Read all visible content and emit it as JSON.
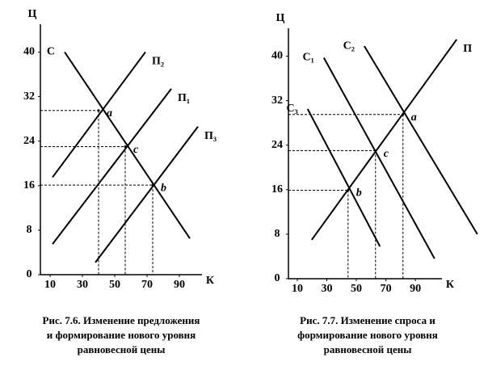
{
  "chart_data": [
    {
      "type": "line",
      "y_label": "Ц",
      "x_label": "К",
      "xlim": [
        4,
        104
      ],
      "ylim": [
        0,
        45
      ],
      "xticks": [
        10,
        30,
        50,
        70,
        90
      ],
      "yticks": [
        0,
        8,
        16,
        24,
        32,
        40
      ],
      "color": "#000000",
      "series": [
        {
          "name": "С",
          "x": [
            19,
            96.5
          ],
          "values": [
            40,
            6.5
          ]
        },
        {
          "name": "П₂",
          "x": [
            11.5,
            69
          ],
          "values": [
            17.5,
            40
          ]
        },
        {
          "name": "П₁",
          "x": [
            11.5,
            85
          ],
          "values": [
            5.5,
            33.4
          ]
        },
        {
          "name": "П₃",
          "x": [
            38,
            101.5
          ],
          "values": [
            2.2,
            26.6
          ]
        }
      ],
      "points": [
        {
          "label": "a",
          "x": 40,
          "y": 29.5
        },
        {
          "label": "c",
          "x": 56.5,
          "y": 23
        },
        {
          "label": "b",
          "x": 73.5,
          "y": 16.1
        }
      ],
      "caption": [
        "Рис. 7.6. Изменение предложения",
        "и формирование нового уровня",
        "равновесной цены"
      ]
    },
    {
      "type": "line",
      "y_label": "Ц",
      "x_label": "К",
      "xlim": [
        4,
        108
      ],
      "ylim": [
        0,
        45
      ],
      "xticks": [
        10,
        30,
        50,
        70,
        90
      ],
      "yticks": [
        0,
        8,
        16,
        24,
        32,
        40
      ],
      "color": "#000000",
      "series": [
        {
          "name": "С₁",
          "x": [
            28,
            103
          ],
          "values": [
            39.7,
            3.6
          ]
        },
        {
          "name": "С₂",
          "x": [
            55.4,
            132
          ],
          "values": [
            41.8,
            8
          ]
        },
        {
          "name": "С₃",
          "x": [
            17,
            66
          ],
          "values": [
            30.5,
            5.8
          ]
        },
        {
          "name": "П",
          "x": [
            19.8,
            118
          ],
          "values": [
            7,
            43
          ]
        }
      ],
      "points": [
        {
          "label": "a",
          "x": 81.6,
          "y": 29.5
        },
        {
          "label": "c",
          "x": 63,
          "y": 23
        },
        {
          "label": "b",
          "x": 44.4,
          "y": 15.9
        }
      ],
      "caption": [
        "Рис. 7.7. Изменение спроса и",
        "формирование нового уровня",
        "равновесной цены"
      ]
    }
  ]
}
